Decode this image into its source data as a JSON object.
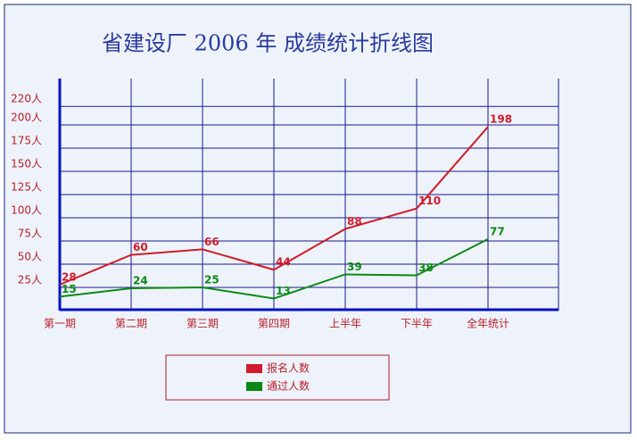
{
  "chart_data": {
    "type": "line",
    "title": "省建设厂 2006 年 成绩统计折线图",
    "categories": [
      "第一期",
      "第二期",
      "第三期",
      "第四期",
      "上半年",
      "下半年",
      "全年统计"
    ],
    "series": [
      {
        "name": "报名人数",
        "color": "#d01c2a",
        "values": [
          28,
          60,
          66,
          44,
          88,
          110,
          198
        ]
      },
      {
        "name": "通过人数",
        "color": "#0a8a14",
        "values": [
          15,
          24,
          25,
          13,
          39,
          38,
          77
        ]
      }
    ],
    "ylim": [
      0,
      250
    ],
    "yticks": [
      {
        "value": 25,
        "label": "25人"
      },
      {
        "value": 50,
        "label": "50人"
      },
      {
        "value": 75,
        "label": "75人"
      },
      {
        "value": 100,
        "label": "100人"
      },
      {
        "value": 125,
        "label": "125人"
      },
      {
        "value": 150,
        "label": "150人"
      },
      {
        "value": 175,
        "label": "175人"
      },
      {
        "value": 200,
        "label": "200人"
      },
      {
        "value": 220,
        "label": "220人"
      }
    ],
    "grid": true,
    "legend": "bottom"
  }
}
